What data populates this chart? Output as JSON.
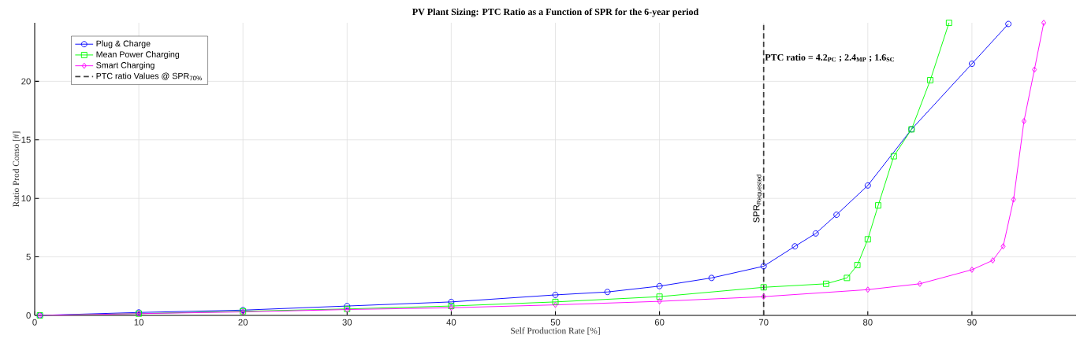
{
  "chart_data": {
    "type": "line",
    "title": "PV Plant Sizing: PTC Ratio as a Function of SPR for the 6-year period",
    "xlabel": "Self Production Rate [%]",
    "ylabel": "Ratio Prod Conso [#]",
    "xlim": [
      0,
      100
    ],
    "ylim": [
      0,
      25
    ],
    "xticks": [
      0,
      10,
      20,
      30,
      40,
      50,
      60,
      70,
      80,
      90
    ],
    "yticks": [
      0,
      5,
      10,
      15,
      20
    ],
    "grid": true,
    "legend": "top left",
    "series": [
      {
        "name": "Plug & Charge",
        "color": "#0000ff",
        "marker": "circle",
        "x": [
          0.5,
          10,
          20,
          30,
          40,
          50,
          55,
          60,
          65,
          70,
          73,
          75,
          77,
          80,
          84.2,
          90,
          93.5
        ],
        "values": [
          0,
          0.25,
          0.45,
          0.8,
          1.15,
          1.75,
          2.0,
          2.5,
          3.2,
          4.2,
          5.9,
          7.0,
          8.6,
          11.1,
          15.9,
          21.5,
          24.9
        ]
      },
      {
        "name": "Mean Power Charging",
        "color": "#00ff00",
        "marker": "square",
        "x": [
          0.5,
          10,
          20,
          30,
          40,
          50,
          60,
          70,
          76,
          78,
          79,
          80,
          81,
          82.5,
          84.2,
          86,
          87.8
        ],
        "values": [
          0,
          0.15,
          0.35,
          0.55,
          0.8,
          1.15,
          1.6,
          2.4,
          2.7,
          3.2,
          4.3,
          6.5,
          9.4,
          13.6,
          15.9,
          20.1,
          25
        ]
      },
      {
        "name": "Smart Charging",
        "color": "#ff00ff",
        "marker": "diamond",
        "x": [
          0.5,
          10,
          20,
          30,
          40,
          50,
          60,
          70,
          80,
          85,
          90,
          92,
          93,
          94,
          95,
          96,
          96.9
        ],
        "values": [
          0,
          0.15,
          0.3,
          0.5,
          0.65,
          0.9,
          1.2,
          1.6,
          2.2,
          2.7,
          3.9,
          4.7,
          5.9,
          9.9,
          16.6,
          21,
          25
        ]
      },
      {
        "name": "PTC ratio Values @ SPR$_{70%}$",
        "color": "#404040",
        "marker": "none",
        "line_style": "dashed",
        "x": [
          70,
          70
        ],
        "values": [
          0,
          25
        ]
      }
    ],
    "annotations": [
      {
        "text": "\\mathsf{SPR}_{\\mathsf{Requested}}",
        "x": 70,
        "y": 10
      },
      {
        "text": "PTC ratio = 4.2$_{PC}$ ; 2.4$_{MP}$ ; 1.6$_{SC}$",
        "x": 70,
        "y": 22
      }
    ]
  }
}
